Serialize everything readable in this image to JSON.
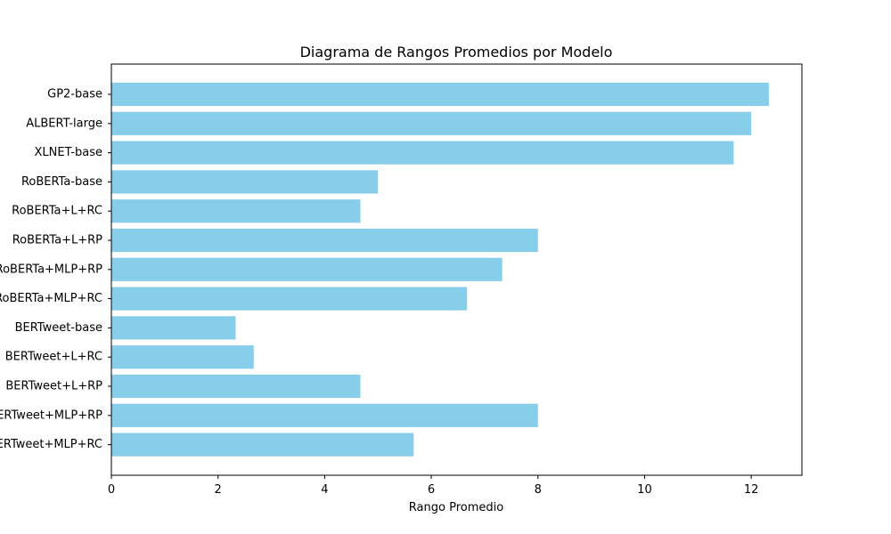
{
  "chart_data": {
    "type": "bar",
    "orientation": "horizontal",
    "title": "Diagrama de Rangos Promedios por Modelo",
    "xlabel": "Rango Promedio",
    "ylabel": "",
    "categories": [
      "GP2-base",
      "ALBERT-large",
      "XLNET-base",
      "RoBERTa-base",
      "RoBERTa+L+RC",
      "RoBERTa+L+RP",
      "RoBERTa+MLP+RP",
      "RoBERTa+MLP+RC",
      "BERTweet-base",
      "BERTweet+L+RC",
      "BERTweet+L+RP",
      "BERTweet+MLP+RP",
      "BERTweet+MLP+RC"
    ],
    "values": [
      12.33,
      12.0,
      11.67,
      5.0,
      4.67,
      8.0,
      7.33,
      6.67,
      2.33,
      2.67,
      4.67,
      8.0,
      5.67
    ],
    "xlim": [
      0,
      12.95
    ],
    "xticks": [
      0,
      2,
      4,
      6,
      8,
      10,
      12
    ],
    "grid": false,
    "legend": "none",
    "bar_color": "#87CEEB",
    "axis_color": "#000000"
  }
}
